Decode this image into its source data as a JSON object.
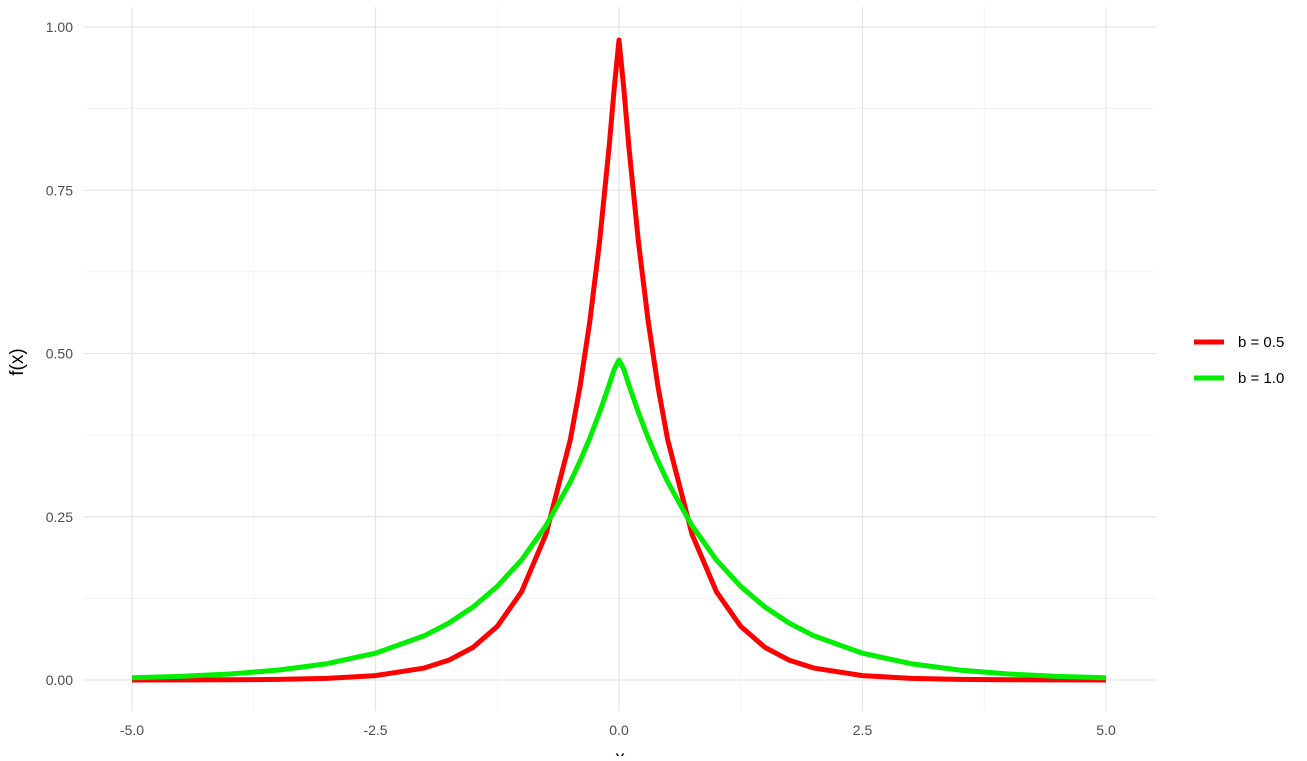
{
  "chart_data": {
    "type": "line",
    "title": "",
    "xlabel": "x",
    "ylabel": "f(x)",
    "xlim": [
      -5,
      5
    ],
    "ylim": [
      0,
      1
    ],
    "x_ticks": [
      -5,
      -2.5,
      0,
      2.5,
      5
    ],
    "x_tick_labels": [
      "-5.0",
      "-2.5",
      "0.0",
      "2.5",
      "5.0"
    ],
    "y_ticks": [
      0,
      0.25,
      0.5,
      0.75,
      1
    ],
    "y_tick_labels": [
      "0.00",
      "0.25",
      "0.50",
      "0.75",
      "1.00"
    ],
    "grid": true,
    "legend_position": "right",
    "series": [
      {
        "name": "b = 0.5",
        "color": "#ff0000",
        "x": [
          -5,
          -4.5,
          -4,
          -3.5,
          -3,
          -2.5,
          -2,
          -1.75,
          -1.5,
          -1.25,
          -1,
          -0.75,
          -0.5,
          -0.4,
          -0.3,
          -0.2,
          -0.1,
          -0.05,
          0,
          0.05,
          0.1,
          0.2,
          0.3,
          0.4,
          0.5,
          0.75,
          1,
          1.25,
          1.5,
          1.75,
          2,
          2.5,
          3,
          3.5,
          4,
          4.5,
          5
        ],
        "values": [
          5e-05,
          0.00012,
          0.00034,
          0.00091,
          0.00248,
          0.00674,
          0.0183,
          0.0302,
          0.0498,
          0.0821,
          0.1353,
          0.2231,
          0.3679,
          0.4493,
          0.5488,
          0.6703,
          0.8187,
          0.9048,
          0.98,
          0.9048,
          0.8187,
          0.6703,
          0.5488,
          0.4493,
          0.3679,
          0.2231,
          0.1353,
          0.0821,
          0.0498,
          0.0302,
          0.0183,
          0.00674,
          0.00248,
          0.00091,
          0.00034,
          0.00012,
          5e-05
        ]
      },
      {
        "name": "b = 1.0",
        "color": "#00ee00",
        "x": [
          -5,
          -4.5,
          -4,
          -3.5,
          -3,
          -2.5,
          -2,
          -1.75,
          -1.5,
          -1.25,
          -1,
          -0.75,
          -0.5,
          -0.4,
          -0.3,
          -0.2,
          -0.1,
          -0.05,
          0,
          0.05,
          0.1,
          0.2,
          0.3,
          0.4,
          0.5,
          0.75,
          1,
          1.25,
          1.5,
          1.75,
          2,
          2.5,
          3,
          3.5,
          4,
          4.5,
          5
        ],
        "values": [
          0.00337,
          0.00555,
          0.00916,
          0.0151,
          0.0249,
          0.041,
          0.0677,
          0.0869,
          0.1116,
          0.1433,
          0.1839,
          0.2362,
          0.3033,
          0.3352,
          0.3704,
          0.4094,
          0.4524,
          0.4756,
          0.49,
          0.4756,
          0.4524,
          0.4094,
          0.3704,
          0.3352,
          0.3033,
          0.2362,
          0.1839,
          0.1433,
          0.1116,
          0.0869,
          0.0677,
          0.041,
          0.0249,
          0.0151,
          0.00916,
          0.00555,
          0.00337
        ]
      }
    ]
  }
}
